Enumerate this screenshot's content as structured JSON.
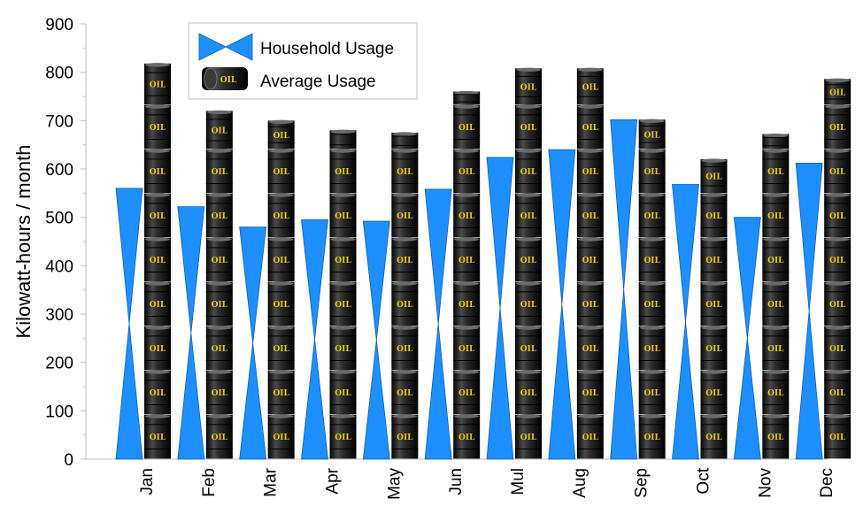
{
  "chart_data": {
    "type": "bar",
    "title": "",
    "xlabel": "",
    "ylabel": "Kilowatt-hours / month",
    "ylim": [
      0,
      900
    ],
    "yticks": [
      0,
      100,
      200,
      300,
      400,
      500,
      600,
      700,
      800,
      900
    ],
    "categories": [
      "Jan",
      "Feb",
      "Mar",
      "Apr",
      "May",
      "Jun",
      "Mul",
      "Aug",
      "Sep",
      "Oct",
      "Nov",
      "Dec"
    ],
    "series": [
      {
        "name": "Household Usage",
        "marker": "bowtie",
        "color": "#1e8fff",
        "values": [
          560,
          522,
          480,
          495,
          492,
          558,
          624,
          640,
          702,
          568,
          500,
          612
        ]
      },
      {
        "name": "Average Usage",
        "marker": "oil-barrel",
        "color": "#111111",
        "values": [
          818,
          720,
          700,
          680,
          675,
          760,
          808,
          808,
          702,
          620,
          672,
          786
        ]
      }
    ],
    "barrel_label": "OIL",
    "legend_position": "top-left",
    "grid": false
  }
}
